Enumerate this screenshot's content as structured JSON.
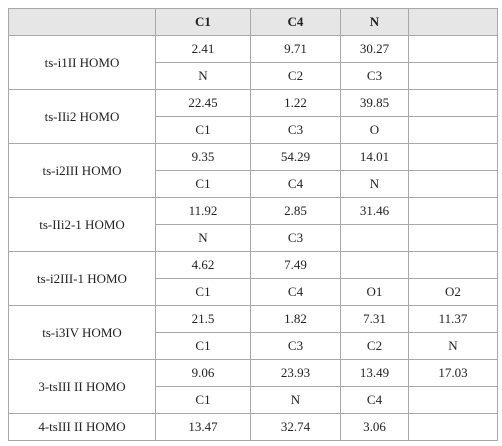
{
  "table": {
    "header": [
      "C1",
      "C4",
      "N"
    ],
    "groups": [
      {
        "label": "ts-i1II HOMO",
        "rows": [
          [
            2.41,
            9.71,
            30.27
          ],
          [
            "N",
            "C2",
            "C3"
          ]
        ]
      },
      {
        "label": "ts-IIi2 HOMO",
        "rows": [
          [
            22.45,
            1.22,
            39.85
          ],
          [
            "C1",
            "C3",
            "O"
          ]
        ]
      },
      {
        "label": "ts-i2III HOMO",
        "rows": [
          [
            9.35,
            54.29,
            14.01
          ],
          [
            "C1",
            "C4",
            "N"
          ]
        ]
      },
      {
        "label": "ts-IIi2-1 HOMO",
        "rows": [
          [
            11.92,
            2.85,
            31.46
          ],
          [
            "N",
            "C3"
          ]
        ]
      },
      {
        "label": "ts-i2III-1 HOMO",
        "rows": [
          [
            4.62,
            7.49
          ],
          [
            "C1",
            "C4",
            "O1",
            "O2"
          ]
        ]
      },
      {
        "label": "ts-i3IV HOMO",
        "rows": [
          [
            21.5,
            1.82,
            7.31,
            11.37
          ],
          [
            "C1",
            "C3",
            "C2",
            "N"
          ]
        ]
      },
      {
        "label": "3-tsIII II HOMO",
        "rows": [
          [
            9.06,
            23.93,
            13.49,
            17.03
          ],
          [
            "C1",
            "N",
            "C4"
          ]
        ]
      },
      {
        "label": "4-tsIII II HOMO",
        "rows": [
          [
            13.47,
            32.74,
            3.06
          ]
        ]
      }
    ]
  }
}
